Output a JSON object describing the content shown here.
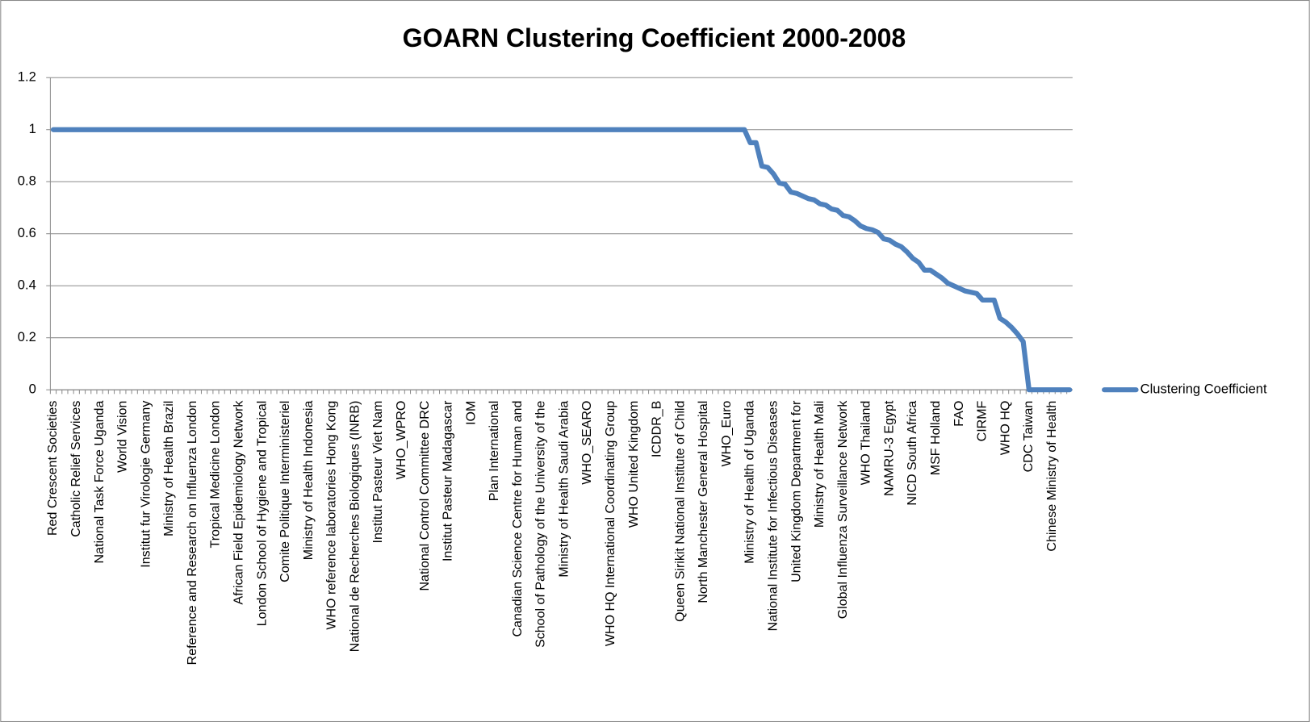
{
  "chart_data": {
    "type": "line",
    "title": "GOARN Clustering Coefficient 2000-2008",
    "categories": [
      "Red Crescent Societies",
      null,
      null,
      null,
      "Catholic Relief Services",
      null,
      null,
      null,
      "National Task Force Uganda",
      null,
      null,
      null,
      "World Vision",
      null,
      null,
      null,
      "Institut fur Virologie Germany",
      null,
      null,
      null,
      "Ministry of Health Brazil",
      null,
      null,
      null,
      "Reference and Research on Influenza London",
      null,
      null,
      null,
      "Tropical Medicine London",
      null,
      null,
      null,
      "African Field Epidemiology Network",
      null,
      null,
      null,
      "London School of Hygiene and Tropical",
      null,
      null,
      null,
      "Comite Politique Interministeriel",
      null,
      null,
      null,
      "Ministry of Health Indonesia",
      null,
      null,
      null,
      "WHO reference laboratories Hong Kong",
      null,
      null,
      null,
      "National de Recherches Biologiques (INRB)",
      null,
      null,
      null,
      "Institut Pasteur Viet Nam",
      null,
      null,
      null,
      "WHO_WPRO",
      null,
      null,
      null,
      "National Control Committee DRC",
      null,
      null,
      null,
      "Institut Pasteur Madagascar",
      null,
      null,
      null,
      "IOM",
      null,
      null,
      null,
      "Plan International",
      null,
      null,
      null,
      "Canadian Science Centre for Human and",
      null,
      null,
      null,
      "School of Pathology of the University of the",
      null,
      null,
      null,
      "Ministry of Health Saudi Arabia",
      null,
      null,
      null,
      "WHO_SEARO",
      null,
      null,
      null,
      "WHO HQ International Coordinating Group",
      null,
      null,
      null,
      "WHO United Kingdom",
      null,
      null,
      null,
      "ICDDR_B",
      null,
      null,
      null,
      "Queen Sirikit National Institute of Child",
      null,
      null,
      null,
      "North Manchester General Hospital",
      null,
      null,
      null,
      "WHO_Euro",
      null,
      null,
      null,
      "Ministry of Health of Uganda",
      null,
      null,
      null,
      "National Institute for Infectious Diseases",
      null,
      null,
      null,
      "United Kingdom Department for",
      null,
      null,
      null,
      "Ministry of Health Mali",
      null,
      null,
      null,
      "Global Influenza Surveillance Network",
      null,
      null,
      null,
      "WHO Thailand",
      null,
      null,
      null,
      "NAMRU-3 Egypt",
      null,
      null,
      null,
      "NICD South Africa",
      null,
      null,
      null,
      "MSF Holland",
      null,
      null,
      null,
      "FAO",
      null,
      null,
      null,
      "CIRMF",
      null,
      null,
      null,
      "WHO HQ",
      null,
      null,
      null,
      "CDC Taiwan",
      null,
      null,
      null,
      "Chinese Ministry of Health",
      null,
      null,
      null
    ],
    "series": [
      {
        "name": "Clustering Coefficient",
        "color": "#4f81bd",
        "values": [
          1,
          1,
          1,
          1,
          1,
          1,
          1,
          1,
          1,
          1,
          1,
          1,
          1,
          1,
          1,
          1,
          1,
          1,
          1,
          1,
          1,
          1,
          1,
          1,
          1,
          1,
          1,
          1,
          1,
          1,
          1,
          1,
          1,
          1,
          1,
          1,
          1,
          1,
          1,
          1,
          1,
          1,
          1,
          1,
          1,
          1,
          1,
          1,
          1,
          1,
          1,
          1,
          1,
          1,
          1,
          1,
          1,
          1,
          1,
          1,
          1,
          1,
          1,
          1,
          1,
          1,
          1,
          1,
          1,
          1,
          1,
          1,
          1,
          1,
          1,
          1,
          1,
          1,
          1,
          1,
          1,
          1,
          1,
          1,
          1,
          1,
          1,
          1,
          1,
          1,
          1,
          1,
          1,
          1,
          1,
          1,
          1,
          1,
          1,
          1,
          1,
          1,
          1,
          1,
          1,
          1,
          1,
          1,
          1,
          1,
          1,
          1,
          1,
          1,
          1,
          1,
          1,
          1,
          1,
          1,
          0.95,
          0.95,
          0.86,
          0.855,
          0.83,
          0.795,
          0.79,
          0.76,
          0.755,
          0.745,
          0.735,
          0.73,
          0.715,
          0.71,
          0.695,
          0.69,
          0.67,
          0.665,
          0.65,
          0.63,
          0.62,
          0.615,
          0.605,
          0.58,
          0.575,
          0.56,
          0.55,
          0.53,
          0.505,
          0.49,
          0.46,
          0.46,
          0.445,
          0.43,
          0.41,
          0.4,
          0.39,
          0.38,
          0.375,
          0.37,
          0.345,
          0.345,
          0.345,
          0.275,
          0.26,
          0.24,
          0.215,
          0.185,
          0,
          0,
          0,
          0,
          0,
          0,
          0,
          0
        ]
      }
    ],
    "ylim": [
      0,
      1.2
    ],
    "yticks": [
      0,
      0.2,
      0.4,
      0.6,
      0.8,
      1,
      1.2
    ],
    "grid": true,
    "legend": "right"
  }
}
